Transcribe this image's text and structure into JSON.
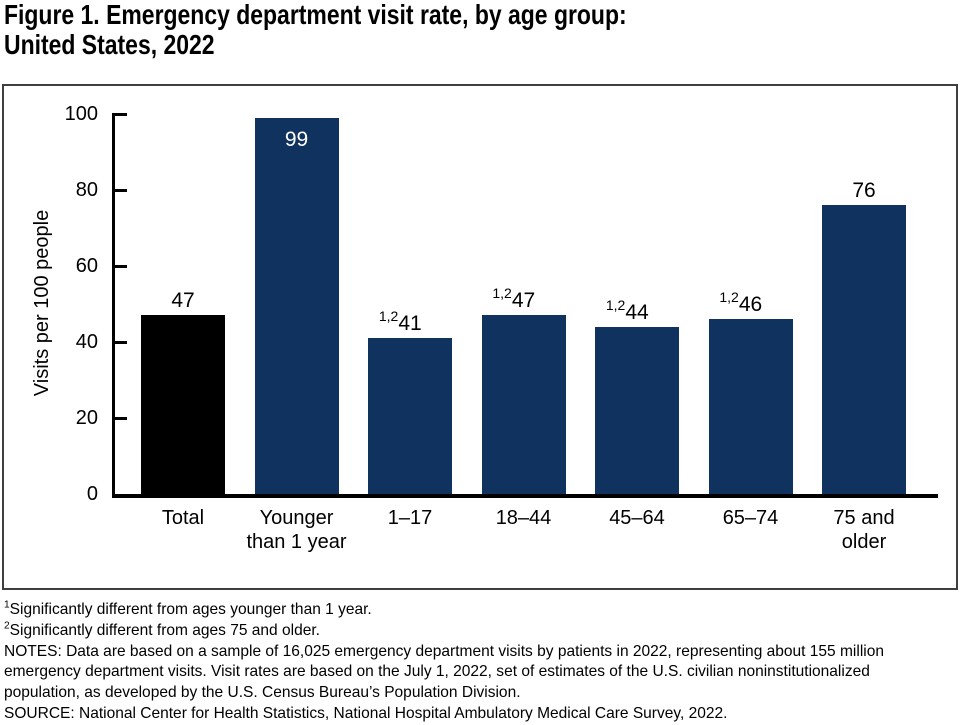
{
  "figure": {
    "title_line1": "Figure 1. Emergency department visit rate, by age group:",
    "title_line2": "United States, 2022"
  },
  "chart_data": {
    "type": "bar",
    "title": "Emergency department visit rate, by age group: United States, 2022",
    "xlabel": "",
    "ylabel": "Visits per 100 people",
    "ylim": [
      0,
      100
    ],
    "yticks": [
      0,
      20,
      40,
      60,
      80,
      100
    ],
    "grid": false,
    "legend": "none",
    "categories": [
      "Total",
      "Younger than 1 year",
      "1–17",
      "18–44",
      "45–64",
      "65–74",
      "75 and older"
    ],
    "values": [
      47,
      99,
      41,
      47,
      44,
      46,
      76
    ],
    "bars": [
      {
        "category": "Total",
        "label_lines": [
          "Total"
        ],
        "value": 47,
        "footnote_marker": "",
        "color": "#000000",
        "value_label_inside": false
      },
      {
        "category": "Younger than 1 year",
        "label_lines": [
          "Younger",
          "than 1 year"
        ],
        "value": 99,
        "footnote_marker": "",
        "color": "#10325f",
        "value_label_inside": true
      },
      {
        "category": "1–17",
        "label_lines": [
          "1–17"
        ],
        "value": 41,
        "footnote_marker": "1,2",
        "color": "#10325f",
        "value_label_inside": false
      },
      {
        "category": "18–44",
        "label_lines": [
          "18–44"
        ],
        "value": 47,
        "footnote_marker": "1,2",
        "color": "#10325f",
        "value_label_inside": false
      },
      {
        "category": "45–64",
        "label_lines": [
          "45–64"
        ],
        "value": 44,
        "footnote_marker": "1,2",
        "color": "#10325f",
        "value_label_inside": false
      },
      {
        "category": "65–74",
        "label_lines": [
          "65–74"
        ],
        "value": 46,
        "footnote_marker": "1,2",
        "color": "#10325f",
        "value_label_inside": false
      },
      {
        "category": "75 and older",
        "label_lines": [
          "75 and",
          "older"
        ],
        "value": 76,
        "footnote_marker": "",
        "color": "#10325f",
        "value_label_inside": false
      }
    ]
  },
  "colors": {
    "bar_navy": "#10325f",
    "bar_black": "#000000",
    "inside_value_label": "#ffffff",
    "frame_border": "#3f3f3f",
    "axis": "#000000",
    "text": "#000000"
  },
  "footnotes": [
    {
      "sup": "1",
      "text": "Significantly different from ages younger than 1 year."
    },
    {
      "sup": "2",
      "text": "Significantly different from ages 75 and older."
    },
    {
      "sup": "",
      "text": "NOTES: Data are based on a sample of 16,025 emergency department visits by patients in 2022, representing about 155 million"
    },
    {
      "sup": "",
      "text": "emergency department visits. Visit rates are based on the July 1, 2022, set of estimates of the U.S. civilian noninstitutionalized"
    },
    {
      "sup": "",
      "text": "population, as developed by the U.S. Census Bureau’s Population Division."
    },
    {
      "sup": "",
      "text": "SOURCE: National Center for Health Statistics, National Hospital Ambulatory Medical Care Survey, 2022."
    }
  ]
}
